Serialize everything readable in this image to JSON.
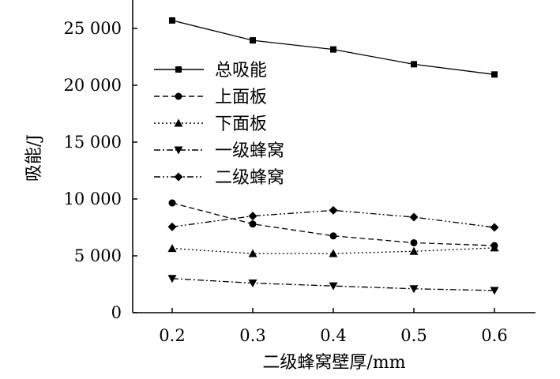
{
  "chart_data": {
    "type": "line",
    "title": "",
    "xlabel": "二级蜂窝壁厚/mm",
    "ylabel": "吸能/J",
    "xlim": [
      0.15,
      0.65
    ],
    "ylim": [
      0,
      25000
    ],
    "x": [
      0.2,
      0.3,
      0.4,
      0.5,
      0.6
    ],
    "x_tick_labels": [
      "0.2",
      "0.3",
      "0.4",
      "0.5",
      "0.6"
    ],
    "y_ticks": [
      0,
      5000,
      10000,
      15000,
      20000,
      25000
    ],
    "y_tick_labels": [
      "0",
      "5 000",
      "10 000",
      "15 000",
      "20 000",
      "25 000"
    ],
    "legend_position": "top-left",
    "series": [
      {
        "name": "总吸能",
        "marker": "square",
        "dash": "solid",
        "values": [
          25700,
          23950,
          23150,
          21850,
          20950
        ]
      },
      {
        "name": "上面板",
        "marker": "circle",
        "dash": "dashed",
        "values": [
          9650,
          7800,
          6750,
          6150,
          5900
        ]
      },
      {
        "name": "下面板",
        "marker": "triangle-up",
        "dash": "dotted",
        "values": [
          5650,
          5200,
          5200,
          5400,
          5700
        ]
      },
      {
        "name": "一级蜂窝",
        "marker": "triangle-down",
        "dash": "dash-dot",
        "values": [
          3000,
          2600,
          2350,
          2100,
          1950
        ]
      },
      {
        "name": "二级蜂窝",
        "marker": "diamond",
        "dash": "dash-dot-dot",
        "values": [
          7550,
          8500,
          9000,
          8400,
          7500
        ]
      }
    ]
  }
}
